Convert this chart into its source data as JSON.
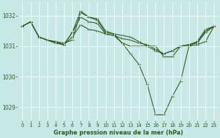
{
  "xlabel": "Graphe pression niveau de la mer (hPa)",
  "background_color": "#c8e8e8",
  "grid_color": "#ffffff",
  "line_color": "#2d5a1b",
  "xlim": [
    -0.5,
    23.5
  ],
  "ylim": [
    1028.55,
    1032.45
  ],
  "yticks": [
    1029,
    1030,
    1031,
    1032
  ],
  "xticks": [
    0,
    1,
    2,
    3,
    4,
    5,
    6,
    7,
    8,
    9,
    10,
    11,
    12,
    13,
    14,
    15,
    16,
    17,
    18,
    19,
    20,
    21,
    22,
    23
  ],
  "series": [
    [
      1031.65,
      1031.8,
      1031.3,
      1031.2,
      1031.15,
      1031.1,
      1031.2,
      1032.1,
      1031.95,
      1031.85,
      1031.45,
      1031.4,
      1031.35,
      1031.3,
      1031.15,
      1031.0,
      1030.85,
      1030.75,
      1030.85,
      1031.0,
      1031.0,
      1031.15,
      1031.55,
      1031.65
    ],
    [
      1031.65,
      1031.8,
      1031.3,
      1031.2,
      1031.15,
      1031.05,
      1031.3,
      1031.7,
      1031.55,
      1031.5,
      1031.4,
      1031.35,
      1031.25,
      1031.2,
      1031.1,
      1031.05,
      1030.9,
      1030.75,
      1030.85,
      1031.0,
      1031.05,
      1031.15,
      1031.5,
      1031.65
    ],
    [
      1031.65,
      1031.8,
      1031.3,
      1031.2,
      1031.1,
      1031.05,
      1031.45,
      1032.15,
      1031.95,
      1031.9,
      1031.5,
      1031.4,
      1031.1,
      1030.75,
      1030.4,
      1029.75,
      1028.75,
      1028.75,
      1029.35,
      1029.85,
      1031.0,
      1031.05,
      1031.15,
      1031.65
    ],
    [
      1031.65,
      1031.8,
      1031.3,
      1031.2,
      1031.1,
      1031.05,
      1031.45,
      1031.95,
      1031.8,
      1031.75,
      1031.4,
      1031.35,
      1031.1,
      1031.0,
      1031.0,
      1031.0,
      1031.0,
      1030.65,
      1030.65,
      1031.0,
      1031.05,
      1031.1,
      1031.45,
      1031.65
    ]
  ]
}
